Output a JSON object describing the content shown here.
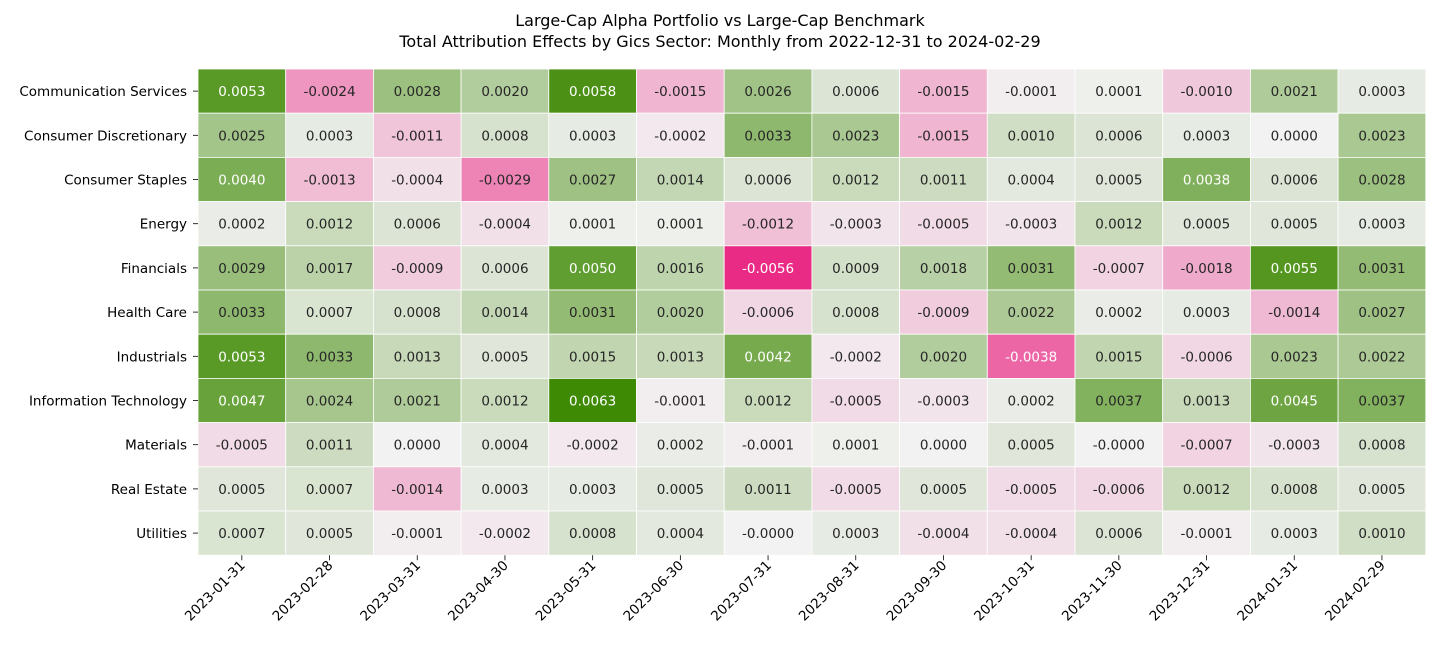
{
  "chart_data": {
    "type": "heatmap",
    "title": "Large-Cap Alpha Portfolio vs Large-Cap Benchmark",
    "subtitle": "Total Attribution Effects by Gics Sector: Monthly from 2022-12-31 to 2024-02-29",
    "xlabel": "",
    "ylabel": "",
    "colormap": "PiYG (diverging, centered at 0)",
    "color_negative_max": "#e9157a",
    "color_zero": "#f2f2f2",
    "color_positive_max": "#3f8a04",
    "value_limit": 0.0063,
    "colorbar": false,
    "grid": false,
    "x": [
      "2023-01-31",
      "2023-02-28",
      "2023-03-31",
      "2023-04-30",
      "2023-05-31",
      "2023-06-30",
      "2023-07-31",
      "2023-08-31",
      "2023-09-30",
      "2023-10-31",
      "2023-11-30",
      "2023-12-31",
      "2024-01-31",
      "2024-02-29"
    ],
    "y": [
      "Communication Services",
      "Consumer Discretionary",
      "Consumer Staples",
      "Energy",
      "Financials",
      "Health Care",
      "Industrials",
      "Information Technology",
      "Materials",
      "Real Estate",
      "Utilities"
    ],
    "labels": [
      [
        "0.0053",
        "-0.0024",
        "0.0028",
        "0.0020",
        "0.0058",
        "-0.0015",
        "0.0026",
        "0.0006",
        "-0.0015",
        "-0.0001",
        "0.0001",
        "-0.0010",
        "0.0021",
        "0.0003"
      ],
      [
        "0.0025",
        "0.0003",
        "-0.0011",
        "0.0008",
        "0.0003",
        "-0.0002",
        "0.0033",
        "0.0023",
        "-0.0015",
        "0.0010",
        "0.0006",
        "0.0003",
        "0.0000",
        "0.0023"
      ],
      [
        "0.0040",
        "-0.0013",
        "-0.0004",
        "-0.0029",
        "0.0027",
        "0.0014",
        "0.0006",
        "0.0012",
        "0.0011",
        "0.0004",
        "0.0005",
        "0.0038",
        "0.0006",
        "0.0028"
      ],
      [
        "0.0002",
        "0.0012",
        "0.0006",
        "-0.0004",
        "0.0001",
        "0.0001",
        "-0.0012",
        "-0.0003",
        "-0.0005",
        "-0.0003",
        "0.0012",
        "0.0005",
        "0.0005",
        "0.0003"
      ],
      [
        "0.0029",
        "0.0017",
        "-0.0009",
        "0.0006",
        "0.0050",
        "0.0016",
        "-0.0056",
        "0.0009",
        "0.0018",
        "0.0031",
        "-0.0007",
        "-0.0018",
        "0.0055",
        "0.0031"
      ],
      [
        "0.0033",
        "0.0007",
        "0.0008",
        "0.0014",
        "0.0031",
        "0.0020",
        "-0.0006",
        "0.0008",
        "-0.0009",
        "0.0022",
        "0.0002",
        "0.0003",
        "-0.0014",
        "0.0027"
      ],
      [
        "0.0053",
        "0.0033",
        "0.0013",
        "0.0005",
        "0.0015",
        "0.0013",
        "0.0042",
        "-0.0002",
        "0.0020",
        "-0.0038",
        "0.0015",
        "-0.0006",
        "0.0023",
        "0.0022"
      ],
      [
        "0.0047",
        "0.0024",
        "0.0021",
        "0.0012",
        "0.0063",
        "-0.0001",
        "0.0012",
        "-0.0005",
        "-0.0003",
        "0.0002",
        "0.0037",
        "0.0013",
        "0.0045",
        "0.0037"
      ],
      [
        "-0.0005",
        "0.0011",
        "0.0000",
        "0.0004",
        "-0.0002",
        "0.0002",
        "-0.0001",
        "0.0001",
        "0.0000",
        "0.0005",
        "-0.0000",
        "-0.0007",
        "-0.0003",
        "0.0008"
      ],
      [
        "0.0005",
        "0.0007",
        "-0.0014",
        "0.0003",
        "0.0003",
        "0.0005",
        "0.0011",
        "-0.0005",
        "0.0005",
        "-0.0005",
        "-0.0006",
        "0.0012",
        "0.0008",
        "0.0005"
      ],
      [
        "0.0007",
        "0.0005",
        "-0.0001",
        "-0.0002",
        "0.0008",
        "0.0004",
        "-0.0000",
        "0.0003",
        "-0.0004",
        "-0.0004",
        "0.0006",
        "-0.0001",
        "0.0003",
        "0.0010"
      ]
    ]
  }
}
